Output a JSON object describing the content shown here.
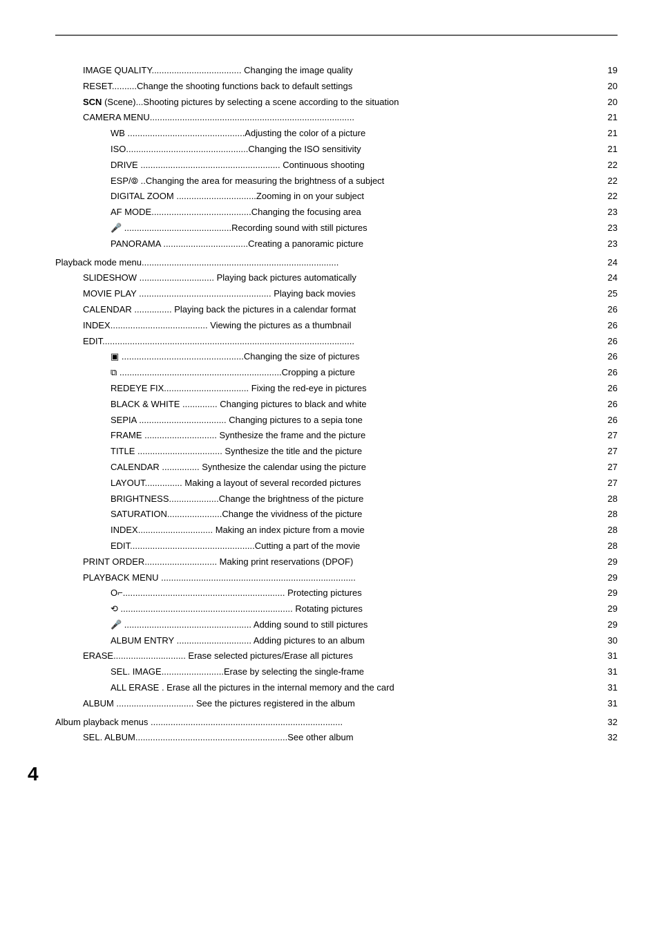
{
  "entries": [
    {
      "indent": 1,
      "text": "IMAGE QUALITY.................................... Changing the image quality",
      "page": "19"
    },
    {
      "indent": 1,
      "text": "RESET..........Change the shooting functions back to default settings",
      "page": "20"
    },
    {
      "indent": 1,
      "html": "<span class=\"scn-bold\">SCN</span> (Scene)...Shooting pictures by selecting a scene according to the situation",
      "page": "20"
    },
    {
      "indent": 1,
      "text": "CAMERA MENU..................................................................................",
      "page": "21"
    },
    {
      "indent": 2,
      "text": "WB ...............................................Adjusting the color of a picture",
      "page": "21"
    },
    {
      "indent": 2,
      "text": "ISO.................................................Changing the ISO sensitivity",
      "page": "21"
    },
    {
      "indent": 2,
      "text": "DRIVE ........................................................ Continuous shooting",
      "page": "22"
    },
    {
      "indent": 2,
      "text": "ESP/⦾ ..Changing the area for measuring the brightness of a subject",
      "page": "22"
    },
    {
      "indent": 2,
      "text": "DIGITAL ZOOM ................................Zooming in on your subject",
      "page": "22"
    },
    {
      "indent": 2,
      "text": "AF MODE........................................Changing the focusing area",
      "page": "23"
    },
    {
      "indent": 2,
      "text": "🎤 ...........................................Recording sound with still pictures",
      "page": "23"
    },
    {
      "indent": 2,
      "text": "PANORAMA ..................................Creating a panoramic picture",
      "page": "23"
    },
    {
      "indent": 0,
      "text": "Playback mode menu...............................................................................",
      "page": "24",
      "section": true
    },
    {
      "indent": 1,
      "text": "SLIDESHOW .............................. Playing back pictures automatically",
      "page": "24"
    },
    {
      "indent": 1,
      "text": "MOVIE PLAY ..................................................... Playing back movies",
      "page": "25"
    },
    {
      "indent": 1,
      "text": "CALENDAR ............... Playing back the pictures in a calendar format",
      "page": "26"
    },
    {
      "indent": 1,
      "text": "INDEX....................................... Viewing the pictures as a thumbnail",
      "page": "26"
    },
    {
      "indent": 1,
      "text": "EDIT.....................................................................................................",
      "page": "26"
    },
    {
      "indent": 2,
      "text": "▣ .................................................Changing the size of pictures",
      "page": "26"
    },
    {
      "indent": 2,
      "text": "⧉ .................................................................Cropping a picture",
      "page": "26"
    },
    {
      "indent": 2,
      "text": "REDEYE FIX.................................. Fixing the red-eye in pictures",
      "page": "26"
    },
    {
      "indent": 2,
      "text": "BLACK & WHITE .............. Changing pictures to black and white",
      "page": "26"
    },
    {
      "indent": 2,
      "text": "SEPIA ................................... Changing pictures to a sepia tone",
      "page": "26"
    },
    {
      "indent": 2,
      "text": "FRAME ............................. Synthesize the frame and the picture",
      "page": "27"
    },
    {
      "indent": 2,
      "text": "TITLE .................................. Synthesize the title and the picture",
      "page": "27"
    },
    {
      "indent": 2,
      "text": "CALENDAR ............... Synthesize the calendar using the picture",
      "page": "27"
    },
    {
      "indent": 2,
      "text": "LAYOUT............... Making a layout of several recorded pictures",
      "page": "27"
    },
    {
      "indent": 2,
      "text": "BRIGHTNESS....................Change the brightness of the picture",
      "page": "28"
    },
    {
      "indent": 2,
      "text": "SATURATION......................Change the vividness of the picture",
      "page": "28"
    },
    {
      "indent": 2,
      "text": "INDEX.............................. Making an index picture from a movie",
      "page": "28"
    },
    {
      "indent": 2,
      "text": "EDIT..................................................Cutting a part of the movie",
      "page": "28"
    },
    {
      "indent": 1,
      "text": "PRINT ORDER............................. Making print reservations (DPOF)",
      "page": "29"
    },
    {
      "indent": 1,
      "text": "PLAYBACK MENU ..............................................................................",
      "page": "29"
    },
    {
      "indent": 2,
      "text": "O⌐................................................................. Protecting pictures",
      "page": "29"
    },
    {
      "indent": 2,
      "text": "⟲ ..................................................................... Rotating pictures",
      "page": "29"
    },
    {
      "indent": 2,
      "text": "🎤 ................................................... Adding sound to still pictures",
      "page": "29"
    },
    {
      "indent": 2,
      "text": "ALBUM ENTRY .............................. Adding pictures to an album",
      "page": "30"
    },
    {
      "indent": 1,
      "text": "ERASE............................. Erase selected pictures/Erase all pictures",
      "page": "31"
    },
    {
      "indent": 2,
      "text": "SEL. IMAGE.........................Erase by selecting the single-frame",
      "page": "31"
    },
    {
      "indent": 2,
      "text": "ALL ERASE . Erase all the pictures in the internal memory and the card",
      "page": "31"
    },
    {
      "indent": 1,
      "text": "ALBUM ............................... See the pictures registered in the album",
      "page": "31"
    },
    {
      "indent": 0,
      "text": "Album playback menus .............................................................................",
      "page": "32",
      "section": true
    },
    {
      "indent": 1,
      "text": "SEL. ALBUM.............................................................See other album",
      "page": "32"
    }
  ],
  "page_number": "4",
  "colors": {
    "text": "#000000",
    "background": "#ffffff",
    "divider": "#666666"
  },
  "typography": {
    "body_fontsize": 13,
    "page_number_fontsize": 28
  }
}
